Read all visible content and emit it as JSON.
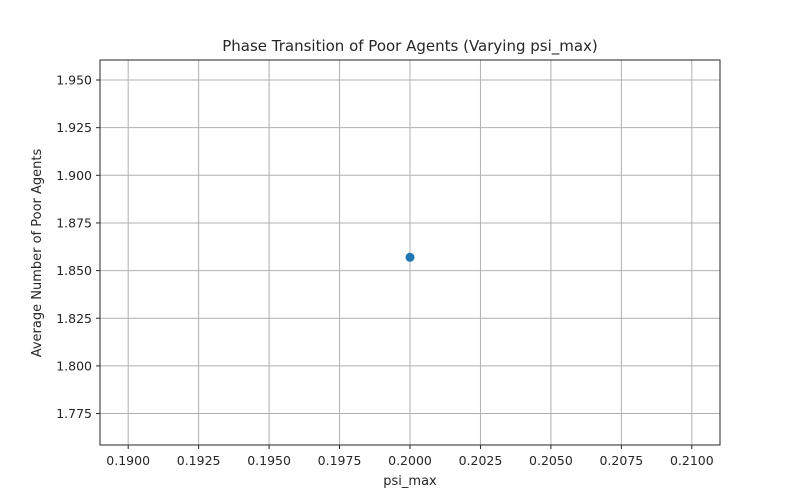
{
  "chart_data": {
    "type": "scatter",
    "title": "Phase Transition of Poor Agents (Varying psi_max)",
    "xlabel": "psi_max",
    "ylabel": "Average Number of Poor Agents",
    "xlim": [
      0.189,
      0.211
    ],
    "ylim": [
      1.7585,
      1.9605
    ],
    "x_ticks": [
      0.19,
      0.1925,
      0.195,
      0.1975,
      0.2,
      0.2025,
      0.205,
      0.2075,
      0.21
    ],
    "x_tick_labels": [
      "0.1900",
      "0.1925",
      "0.1950",
      "0.1975",
      "0.2000",
      "0.2025",
      "0.2050",
      "0.2075",
      "0.2100"
    ],
    "y_ticks": [
      1.775,
      1.8,
      1.825,
      1.85,
      1.875,
      1.9,
      1.925,
      1.95
    ],
    "y_tick_labels": [
      "1.775",
      "1.800",
      "1.825",
      "1.850",
      "1.875",
      "1.900",
      "1.925",
      "1.950"
    ],
    "grid": true,
    "series": [
      {
        "x": [
          0.2
        ],
        "y": [
          1.857
        ],
        "color": "#1f77b4",
        "marker": "circle"
      }
    ]
  }
}
